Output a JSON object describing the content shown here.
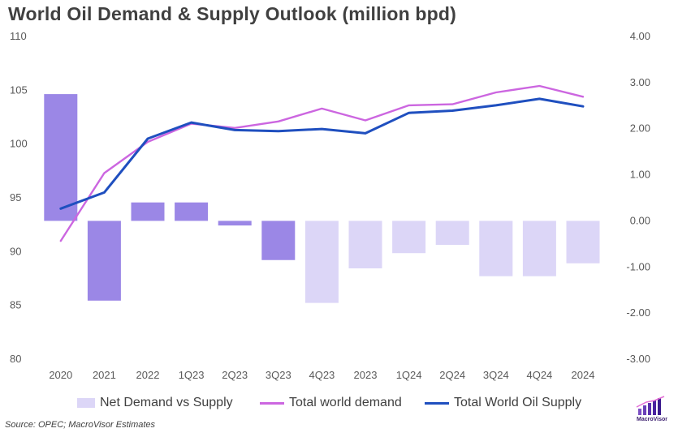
{
  "title": "World Oil Demand & Supply Outlook (million bpd)",
  "source": "Source: OPEC; MacroVisor Estimates",
  "logo": {
    "name": "MacroVisor",
    "text": "MacroVisor",
    "icon": "bar-chart-logo-icon"
  },
  "colors": {
    "bar_dark": "#9b87e6",
    "bar_light": "#dcd6f7",
    "demand_line": "#cc66e0",
    "supply_line": "#1f4fbf",
    "grid": "#d9d9d9"
  },
  "chart_data": {
    "type": "bar+line",
    "title": "World Oil Demand & Supply Outlook (million bpd)",
    "categories": [
      "2020",
      "2021",
      "2022",
      "1Q23",
      "2Q23",
      "3Q23",
      "4Q23",
      "2023",
      "1Q24",
      "2Q24",
      "3Q24",
      "4Q24",
      "2024"
    ],
    "left_axis": {
      "min": 80,
      "max": 110,
      "ticks": [
        "80",
        "85",
        "90",
        "95",
        "100",
        "105",
        "110"
      ]
    },
    "right_axis": {
      "min": -3,
      "max": 4,
      "ticks": [
        "-3.00",
        "-2.00",
        "-1.00",
        "0.00",
        "1.00",
        "2.00",
        "3.00",
        "4.00"
      ]
    },
    "grid": false,
    "legend_position": "bottom",
    "series": [
      {
        "name": "Net Demand vs Supply",
        "kind": "bar",
        "axis": "right",
        "values": [
          2.75,
          -1.73,
          0.4,
          0.4,
          -0.1,
          -0.85,
          -1.78,
          -1.03,
          -0.7,
          -0.52,
          -1.2,
          -1.2,
          -0.92
        ],
        "shade": [
          "dark",
          "dark",
          "dark",
          "dark",
          "dark",
          "dark",
          "light",
          "light",
          "light",
          "light",
          "light",
          "light",
          "light"
        ]
      },
      {
        "name": "Total world demand",
        "kind": "line",
        "axis": "left",
        "values": [
          91.0,
          97.3,
          100.2,
          101.9,
          101.5,
          102.1,
          103.3,
          102.2,
          103.6,
          103.7,
          104.8,
          105.4,
          104.4
        ]
      },
      {
        "name": "Total World Oil Supply",
        "kind": "line",
        "axis": "left",
        "values": [
          94.0,
          95.5,
          100.5,
          102.0,
          101.3,
          101.2,
          101.4,
          101.0,
          102.9,
          103.1,
          103.6,
          104.2,
          103.5
        ]
      }
    ]
  }
}
